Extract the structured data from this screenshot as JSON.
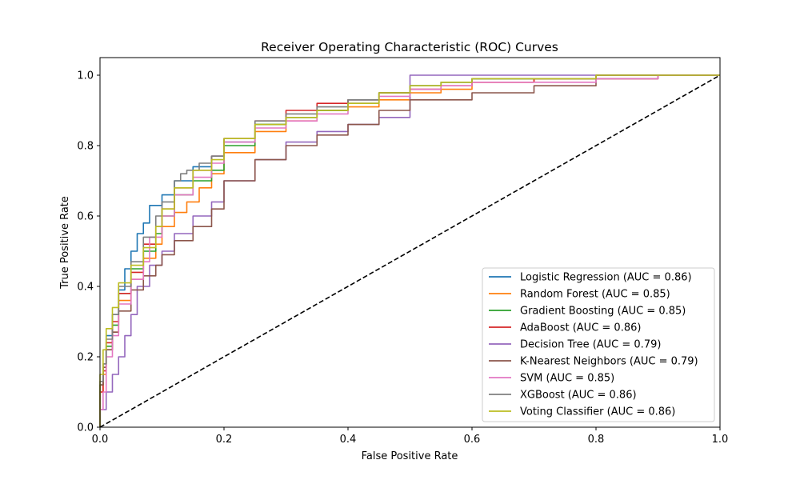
{
  "chart_data": {
    "type": "line",
    "title": "Receiver Operating Characteristic (ROC) Curves",
    "xlabel": "False Positive Rate",
    "ylabel": "True Positive Rate",
    "xlim": [
      0,
      1
    ],
    "ylim": [
      0,
      1.05
    ],
    "xticks": [
      "0.0",
      "0.2",
      "0.4",
      "0.6",
      "0.8",
      "1.0"
    ],
    "yticks": [
      "0.0",
      "0.2",
      "0.4",
      "0.6",
      "0.8",
      "1.0"
    ],
    "grid": false,
    "legend_position": "lower-right",
    "baseline": {
      "x": [
        0,
        1
      ],
      "y": [
        0,
        1
      ],
      "color": "#000000",
      "style": "dashed"
    },
    "series": [
      {
        "name": "Logistic Regression (AUC = 0.86)",
        "color": "#1f77b4",
        "x": [
          0,
          0.005,
          0.01,
          0.02,
          0.03,
          0.04,
          0.05,
          0.06,
          0.07,
          0.08,
          0.1,
          0.12,
          0.15,
          0.18,
          0.2,
          0.25,
          0.3,
          0.35,
          0.4,
          0.45,
          0.5,
          0.55,
          0.6,
          0.7,
          0.8,
          0.9,
          1.0
        ],
        "y": [
          0,
          0.12,
          0.18,
          0.26,
          0.32,
          0.39,
          0.45,
          0.5,
          0.55,
          0.58,
          0.63,
          0.66,
          0.7,
          0.74,
          0.77,
          0.81,
          0.86,
          0.88,
          0.9,
          0.93,
          0.95,
          0.97,
          0.98,
          0.99,
          0.99,
          1.0,
          1.0
        ]
      },
      {
        "name": "Random Forest (AUC = 0.85)",
        "color": "#ff7f0e",
        "x": [
          0,
          0.005,
          0.01,
          0.02,
          0.03,
          0.05,
          0.07,
          0.09,
          0.1,
          0.12,
          0.14,
          0.16,
          0.18,
          0.2,
          0.25,
          0.3,
          0.35,
          0.4,
          0.45,
          0.5,
          0.55,
          0.6,
          0.7,
          0.8,
          0.9,
          1.0
        ],
        "y": [
          0,
          0.1,
          0.15,
          0.22,
          0.27,
          0.36,
          0.42,
          0.48,
          0.52,
          0.57,
          0.61,
          0.64,
          0.68,
          0.72,
          0.78,
          0.84,
          0.87,
          0.9,
          0.91,
          0.93,
          0.95,
          0.96,
          0.98,
          0.99,
          0.99,
          1.0
        ]
      },
      {
        "name": "Gradient Boosting (AUC = 0.85)",
        "color": "#2ca02c",
        "x": [
          0,
          0.005,
          0.01,
          0.02,
          0.03,
          0.05,
          0.07,
          0.09,
          0.1,
          0.12,
          0.15,
          0.18,
          0.2,
          0.25,
          0.3,
          0.35,
          0.4,
          0.45,
          0.5,
          0.55,
          0.6,
          0.7,
          0.8,
          0.9,
          1.0
        ],
        "y": [
          0,
          0.12,
          0.17,
          0.23,
          0.29,
          0.38,
          0.45,
          0.5,
          0.55,
          0.6,
          0.66,
          0.7,
          0.73,
          0.8,
          0.86,
          0.88,
          0.9,
          0.92,
          0.95,
          0.97,
          0.98,
          0.99,
          0.99,
          1.0,
          1.0
        ]
      },
      {
        "name": "AdaBoost (AUC = 0.86)",
        "color": "#d62728",
        "x": [
          0,
          0.005,
          0.01,
          0.02,
          0.03,
          0.05,
          0.07,
          0.09,
          0.1,
          0.12,
          0.15,
          0.18,
          0.2,
          0.25,
          0.3,
          0.35,
          0.4,
          0.45,
          0.5,
          0.55,
          0.6,
          0.7,
          0.8,
          0.9,
          1.0
        ],
        "y": [
          0,
          0.1,
          0.16,
          0.24,
          0.3,
          0.38,
          0.44,
          0.52,
          0.57,
          0.62,
          0.68,
          0.73,
          0.77,
          0.82,
          0.87,
          0.9,
          0.92,
          0.93,
          0.95,
          0.96,
          0.97,
          0.98,
          0.99,
          1.0,
          1.0
        ]
      },
      {
        "name": "Decision Tree (AUC = 0.79)",
        "color": "#9467bd",
        "x": [
          0,
          0.01,
          0.02,
          0.03,
          0.04,
          0.05,
          0.06,
          0.08,
          0.1,
          0.12,
          0.15,
          0.18,
          0.2,
          0.25,
          0.3,
          0.35,
          0.4,
          0.45,
          0.5,
          1.0
        ],
        "y": [
          0,
          0.05,
          0.1,
          0.15,
          0.2,
          0.26,
          0.32,
          0.4,
          0.46,
          0.5,
          0.55,
          0.6,
          0.64,
          0.7,
          0.76,
          0.81,
          0.84,
          0.86,
          0.88,
          1.0
        ]
      },
      {
        "name": "K-Nearest Neighbors (AUC = 0.79)",
        "color": "#8c564b",
        "x": [
          0,
          0.005,
          0.01,
          0.02,
          0.03,
          0.05,
          0.07,
          0.09,
          0.1,
          0.12,
          0.15,
          0.18,
          0.2,
          0.25,
          0.3,
          0.35,
          0.4,
          0.45,
          0.5,
          0.6,
          0.7,
          0.8,
          0.9,
          1.0
        ],
        "y": [
          0,
          0.12,
          0.17,
          0.22,
          0.27,
          0.33,
          0.39,
          0.43,
          0.46,
          0.49,
          0.53,
          0.57,
          0.62,
          0.7,
          0.76,
          0.8,
          0.83,
          0.86,
          0.9,
          0.93,
          0.95,
          0.97,
          0.99,
          1.0
        ]
      },
      {
        "name": "SVM (AUC = 0.85)",
        "color": "#e377c2",
        "x": [
          0,
          0.005,
          0.01,
          0.02,
          0.03,
          0.05,
          0.07,
          0.08,
          0.1,
          0.12,
          0.15,
          0.18,
          0.2,
          0.25,
          0.3,
          0.35,
          0.4,
          0.45,
          0.5,
          0.55,
          0.6,
          0.7,
          0.8,
          0.9,
          1.0
        ],
        "y": [
          0,
          0.05,
          0.1,
          0.2,
          0.26,
          0.35,
          0.42,
          0.47,
          0.54,
          0.6,
          0.66,
          0.71,
          0.75,
          0.81,
          0.85,
          0.87,
          0.89,
          0.92,
          0.94,
          0.96,
          0.97,
          0.98,
          0.98,
          0.99,
          1.0
        ]
      },
      {
        "name": "XGBoost (AUC = 0.86)",
        "color": "#7f7f7f",
        "x": [
          0,
          0.005,
          0.01,
          0.02,
          0.03,
          0.05,
          0.07,
          0.09,
          0.1,
          0.12,
          0.13,
          0.14,
          0.16,
          0.18,
          0.2,
          0.25,
          0.3,
          0.35,
          0.4,
          0.45,
          0.5,
          0.55,
          0.6,
          0.7,
          0.8,
          0.9,
          1.0
        ],
        "y": [
          0,
          0.13,
          0.18,
          0.25,
          0.32,
          0.4,
          0.47,
          0.54,
          0.6,
          0.64,
          0.7,
          0.72,
          0.73,
          0.75,
          0.77,
          0.82,
          0.87,
          0.89,
          0.91,
          0.93,
          0.95,
          0.97,
          0.98,
          0.99,
          0.99,
          1.0,
          1.0
        ]
      },
      {
        "name": "Voting Classifier (AUC = 0.86)",
        "color": "#bcbd22",
        "x": [
          0,
          0.005,
          0.01,
          0.02,
          0.03,
          0.05,
          0.07,
          0.09,
          0.1,
          0.12,
          0.15,
          0.18,
          0.2,
          0.25,
          0.3,
          0.35,
          0.4,
          0.45,
          0.5,
          0.55,
          0.6,
          0.7,
          0.8,
          0.9,
          1.0
        ],
        "y": [
          0,
          0.15,
          0.22,
          0.28,
          0.34,
          0.41,
          0.46,
          0.51,
          0.57,
          0.62,
          0.68,
          0.73,
          0.76,
          0.82,
          0.86,
          0.88,
          0.9,
          0.92,
          0.95,
          0.97,
          0.98,
          0.99,
          0.99,
          1.0,
          1.0
        ]
      }
    ]
  }
}
